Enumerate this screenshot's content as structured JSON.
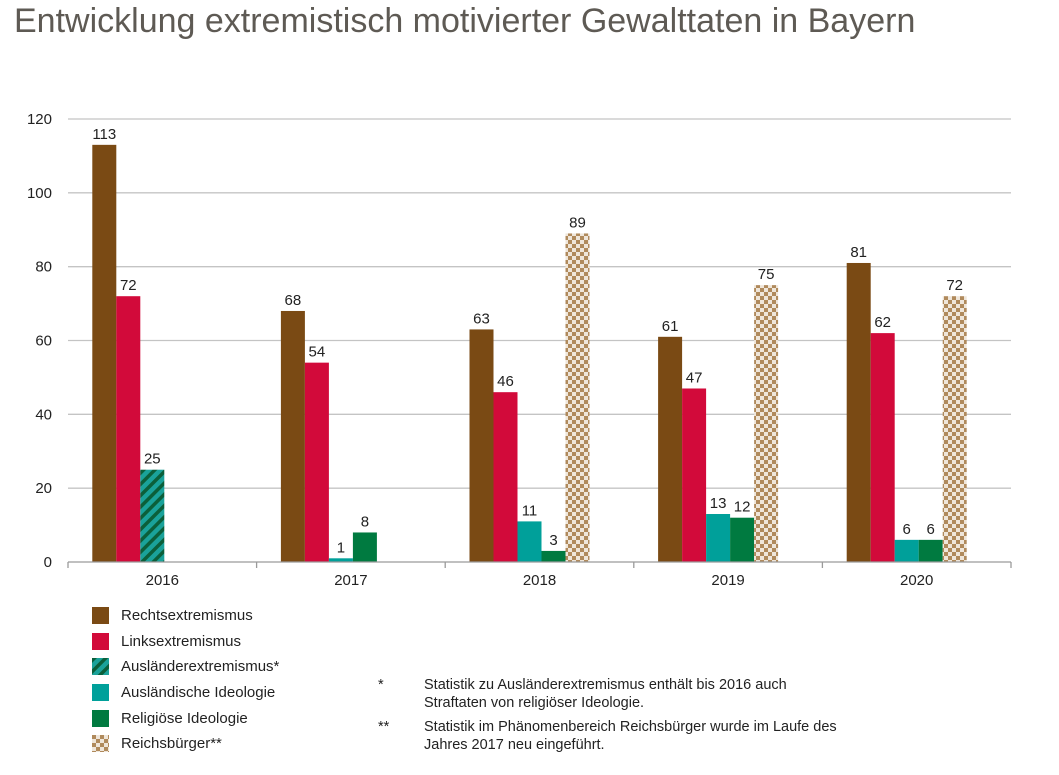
{
  "title": "Entwicklung extremistisch motivierter Gewalttaten in Bayern",
  "chart_data": {
    "type": "bar",
    "categories": [
      "2016",
      "2017",
      "2018",
      "2019",
      "2020"
    ],
    "ylim": [
      0,
      120
    ],
    "yticks": [
      0,
      20,
      40,
      60,
      80,
      100,
      120
    ],
    "grid": true,
    "series": [
      {
        "name": "Rechtsextremismus",
        "color": "#7a4a14",
        "pattern": "solid",
        "values": [
          113,
          68,
          63,
          61,
          81
        ]
      },
      {
        "name": "Linksextremismus",
        "color": "#d20a3a",
        "pattern": "solid",
        "values": [
          72,
          54,
          46,
          47,
          62
        ]
      },
      {
        "name": "Ausländerextremismus*",
        "color": "#1aa29a",
        "pattern": "stripes",
        "values": [
          25,
          null,
          null,
          null,
          null
        ]
      },
      {
        "name": "Ausländische Ideologie",
        "color": "#00a09a",
        "pattern": "solid",
        "values": [
          null,
          1,
          11,
          13,
          6
        ]
      },
      {
        "name": "Religiöse Ideologie",
        "color": "#007a40",
        "pattern": "solid",
        "values": [
          null,
          8,
          3,
          12,
          6
        ]
      },
      {
        "name": "Reichsbürger**",
        "color": "#b08a5c",
        "pattern": "checker",
        "values": [
          null,
          null,
          89,
          75,
          72
        ]
      }
    ],
    "footnotes": [
      {
        "mark": "*",
        "text": "Statistik zu Ausländerextremismus enthält bis 2016 auch Straftaten von religiöser Ideologie."
      },
      {
        "mark": "**",
        "text": "Statistik im Phänomenbereich Reichsbürger wurde im Laufe des Jahres 2017 neu eingeführt."
      }
    ]
  }
}
